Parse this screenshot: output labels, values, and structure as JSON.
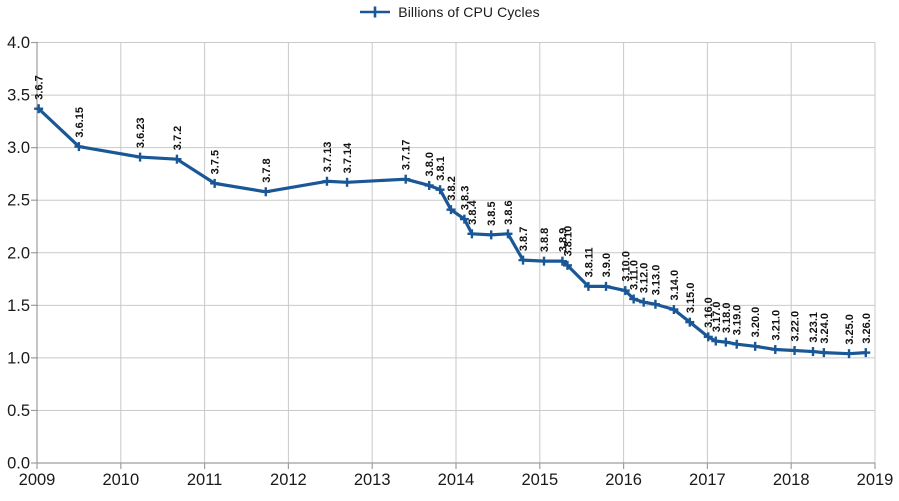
{
  "legend": {
    "label": "Billions of CPU Cycles"
  },
  "colors": {
    "line": "#1A5796",
    "grid": "#c9c9c9",
    "axis": "#9e9e9e",
    "tick_text": "#1a1a1a",
    "data_label_text": "#111111",
    "background": "#ffffff"
  },
  "chart_data": {
    "type": "line",
    "title": "Billions of CPU Cycles",
    "legend_position": "top-center",
    "grid": true,
    "xlabel": "",
    "ylabel": "",
    "x_axis": {
      "range": [
        2009,
        2019
      ],
      "ticks": [
        2009,
        2010,
        2011,
        2012,
        2013,
        2014,
        2015,
        2016,
        2017,
        2018,
        2019
      ]
    },
    "y_axis": {
      "range": [
        0,
        4
      ],
      "tick_step": 0.5,
      "tick_labels": [
        "0.0",
        "0.5",
        "1.0",
        "1.5",
        "2.0",
        "2.5",
        "3.0",
        "3.5",
        "4.0"
      ]
    },
    "series": [
      {
        "name": "Billions of CPU Cycles",
        "marker": "plus",
        "points": [
          {
            "label": "3.6.7",
            "x": 2009.02,
            "y": 3.37
          },
          {
            "label": "3.6.15",
            "x": 2009.5,
            "y": 3.01
          },
          {
            "label": "3.6.23",
            "x": 2010.23,
            "y": 2.91
          },
          {
            "label": "3.7.2",
            "x": 2010.67,
            "y": 2.89
          },
          {
            "label": "3.7.5",
            "x": 2011.12,
            "y": 2.66
          },
          {
            "label": "3.7.8",
            "x": 2011.73,
            "y": 2.58
          },
          {
            "label": "3.7.13",
            "x": 2012.46,
            "y": 2.68
          },
          {
            "label": "3.7.14",
            "x": 2012.7,
            "y": 2.67
          },
          {
            "label": "3.7.17",
            "x": 2013.4,
            "y": 2.7
          },
          {
            "label": "3.8.0",
            "x": 2013.68,
            "y": 2.64
          },
          {
            "label": "3.8.1",
            "x": 2013.81,
            "y": 2.6
          },
          {
            "label": "3.8.2",
            "x": 2013.94,
            "y": 2.41
          },
          {
            "label": "3.8.3",
            "x": 2014.1,
            "y": 2.32
          },
          {
            "label": "3.8.4",
            "x": 2014.19,
            "y": 2.18
          },
          {
            "label": "3.8.5",
            "x": 2014.42,
            "y": 2.17
          },
          {
            "label": "3.8.6",
            "x": 2014.62,
            "y": 2.18
          },
          {
            "label": "3.8.7",
            "x": 2014.8,
            "y": 1.93
          },
          {
            "label": "3.8.8",
            "x": 2015.05,
            "y": 1.92
          },
          {
            "label": "3.8.9",
            "x": 2015.27,
            "y": 1.92
          },
          {
            "label": "3.8.10",
            "x": 2015.33,
            "y": 1.88
          },
          {
            "label": "3.8.11",
            "x": 2015.58,
            "y": 1.68
          },
          {
            "label": "3.9.0",
            "x": 2015.79,
            "y": 1.68
          },
          {
            "label": "3.10.0",
            "x": 2016.02,
            "y": 1.64
          },
          {
            "label": "3.11.0",
            "x": 2016.12,
            "y": 1.56
          },
          {
            "label": "3.12.0",
            "x": 2016.24,
            "y": 1.53
          },
          {
            "label": "3.13.0",
            "x": 2016.38,
            "y": 1.51
          },
          {
            "label": "3.14.0",
            "x": 2016.6,
            "y": 1.46
          },
          {
            "label": "3.15.0",
            "x": 2016.79,
            "y": 1.34
          },
          {
            "label": "3.16.0",
            "x": 2017.01,
            "y": 1.2
          },
          {
            "label": "3.17.0",
            "x": 2017.1,
            "y": 1.16
          },
          {
            "label": "3.18.0",
            "x": 2017.22,
            "y": 1.15
          },
          {
            "label": "3.19.0",
            "x": 2017.35,
            "y": 1.13
          },
          {
            "label": "3.20.0",
            "x": 2017.57,
            "y": 1.11
          },
          {
            "label": "3.21.0",
            "x": 2017.81,
            "y": 1.08
          },
          {
            "label": "3.22.0",
            "x": 2018.04,
            "y": 1.07
          },
          {
            "label": "3.23.1",
            "x": 2018.26,
            "y": 1.06
          },
          {
            "label": "3.24.0",
            "x": 2018.39,
            "y": 1.05
          },
          {
            "label": "3.25.0",
            "x": 2018.69,
            "y": 1.04
          },
          {
            "label": "3.26.0",
            "x": 2018.89,
            "y": 1.05
          }
        ]
      }
    ]
  }
}
